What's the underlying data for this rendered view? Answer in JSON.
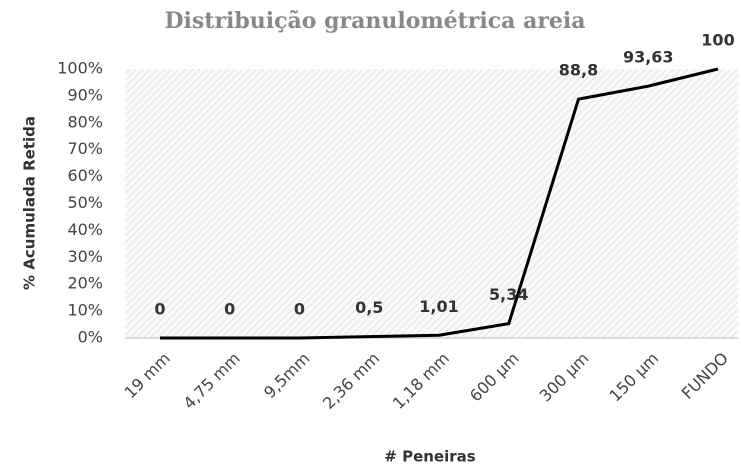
{
  "chart_data": {
    "type": "line",
    "title": "Distribuição granulométrica areia",
    "x_label": "# Peneiras",
    "y_label": "% Acumulada  Retida",
    "categories": [
      "19 mm",
      "4,75 mm",
      "9,5mm",
      "2,36 mm",
      "1,18 mm",
      "600 µm",
      "300 µm",
      "150 µm",
      "FUNDO"
    ],
    "values": [
      0,
      0,
      0,
      0.5,
      1.01,
      5.34,
      88.8,
      93.63,
      100
    ],
    "value_labels": [
      "0",
      "0",
      "0",
      "0,5",
      "1,01",
      "5,34",
      "88,8",
      "93,63",
      "100"
    ],
    "color": "#000000",
    "ylim": [
      0,
      100
    ],
    "yticks": [
      {
        "value": 0,
        "label": "0%"
      },
      {
        "value": 10,
        "label": "10%"
      },
      {
        "value": 20,
        "label": "20%"
      },
      {
        "value": 30,
        "label": "30%"
      },
      {
        "value": 40,
        "label": "40%"
      },
      {
        "value": 50,
        "label": "50%"
      },
      {
        "value": 60,
        "label": "60%"
      },
      {
        "value": 70,
        "label": "70%"
      },
      {
        "value": 80,
        "label": "80%"
      },
      {
        "value": 90,
        "label": "90%"
      },
      {
        "value": 100,
        "label": "100%"
      }
    ]
  }
}
